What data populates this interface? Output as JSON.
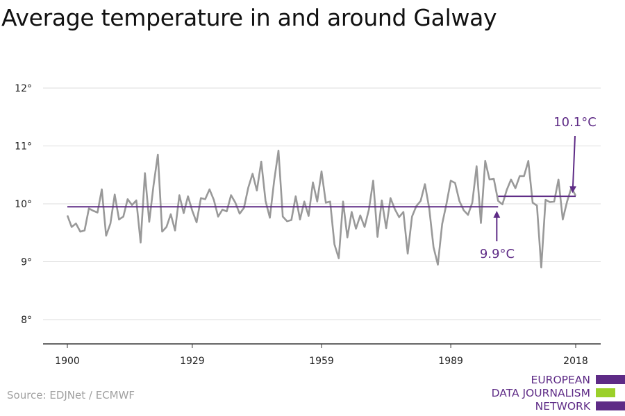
{
  "chart_data": {
    "type": "line",
    "title": "Average temperature in and around Galway",
    "xlabel": "",
    "ylabel": "",
    "xlim": [
      1900,
      2018
    ],
    "ylim": [
      7.6,
      12.3
    ],
    "yticks": [
      8,
      9,
      10,
      11,
      12
    ],
    "ytick_labels": [
      "8°",
      "9°",
      "10°",
      "11°",
      "12°"
    ],
    "xticks": [
      1900,
      1929,
      1959,
      1989,
      2018
    ],
    "xtick_labels": [
      "1900",
      "1929",
      "1959",
      "1989",
      "2018"
    ],
    "grid": "horizontal",
    "series": [
      {
        "color": "#999999",
        "x": [
          1900,
          1901,
          1902,
          1903,
          1904,
          1905,
          1906,
          1907,
          1908,
          1909,
          1910,
          1911,
          1912,
          1913,
          1914,
          1915,
          1916,
          1917,
          1918,
          1919,
          1920,
          1921,
          1922,
          1923,
          1924,
          1925,
          1926,
          1927,
          1928,
          1929,
          1930,
          1931,
          1932,
          1933,
          1934,
          1935,
          1936,
          1937,
          1938,
          1939,
          1940,
          1941,
          1942,
          1943,
          1944,
          1945,
          1946,
          1947,
          1948,
          1949,
          1950,
          1951,
          1952,
          1953,
          1954,
          1955,
          1956,
          1957,
          1958,
          1959,
          1960,
          1961,
          1962,
          1963,
          1964,
          1965,
          1966,
          1967,
          1968,
          1969,
          1970,
          1971,
          1972,
          1973,
          1974,
          1975,
          1976,
          1977,
          1978,
          1979,
          1980,
          1981,
          1982,
          1983,
          1984,
          1985,
          1986,
          1987,
          1988,
          1989,
          1990,
          1991,
          1992,
          1993,
          1994,
          1995,
          1996,
          1997,
          1998,
          1999,
          2000,
          2001,
          2002,
          2003,
          2004,
          2005,
          2006,
          2007,
          2008,
          2009,
          2010,
          2011,
          2012,
          2013,
          2014,
          2015,
          2016,
          2017,
          2018
        ],
        "values": [
          9.8,
          9.6,
          9.66,
          9.52,
          9.54,
          9.92,
          9.88,
          9.85,
          10.25,
          9.45,
          9.66,
          10.16,
          9.73,
          9.78,
          10.08,
          9.98,
          10.06,
          9.33,
          10.53,
          9.69,
          10.32,
          10.85,
          9.52,
          9.6,
          9.82,
          9.54,
          10.15,
          9.84,
          10.13,
          9.88,
          9.68,
          10.1,
          10.08,
          10.25,
          10.07,
          9.78,
          9.9,
          9.87,
          10.15,
          10.02,
          9.83,
          9.93,
          10.28,
          10.52,
          10.23,
          10.73,
          10.05,
          9.76,
          10.4,
          10.92,
          9.78,
          9.7,
          9.72,
          10.13,
          9.73,
          10.04,
          9.79,
          10.37,
          10.04,
          10.56,
          10.02,
          10.04,
          9.3,
          9.06,
          10.04,
          9.42,
          9.86,
          9.57,
          9.8,
          9.6,
          9.9,
          10.4,
          9.43,
          10.06,
          9.58,
          10.1,
          9.91,
          9.77,
          9.86,
          9.14,
          9.78,
          9.96,
          10.05,
          10.34,
          9.92,
          9.25,
          8.95,
          9.65,
          10.0,
          10.4,
          10.36,
          10.05,
          9.89,
          9.81,
          10.02,
          10.65,
          9.67,
          10.74,
          10.42,
          10.43,
          10.05,
          9.99,
          10.24,
          10.42,
          10.27,
          10.48,
          10.48,
          10.74,
          10.02,
          9.97,
          8.9,
          10.07,
          10.03,
          10.04,
          10.42,
          9.73,
          10.04,
          10.28,
          10.14
        ]
      },
      {
        "color": "#5e2b86",
        "x": [
          1900,
          2000
        ],
        "values": [
          9.95,
          9.95
        ]
      },
      {
        "color": "#5e2b86",
        "x": [
          2000,
          2018
        ],
        "values": [
          10.13,
          10.13
        ]
      }
    ],
    "annotations": [
      {
        "text": "9.9°C",
        "color": "#5e2b86",
        "points_to": [
          2000,
          9.95
        ]
      },
      {
        "text": "10.1°C",
        "color": "#5e2b86",
        "points_to": [
          2017,
          10.15
        ]
      }
    ]
  },
  "source": "Source: EDJNet / ECMWF",
  "logo": {
    "lines": [
      "EUROPEAN",
      "DATA JOURNALISM",
      "NETWORK"
    ],
    "colors": [
      "#5e2b86",
      "#9bd02a",
      "#5e2b86"
    ]
  }
}
